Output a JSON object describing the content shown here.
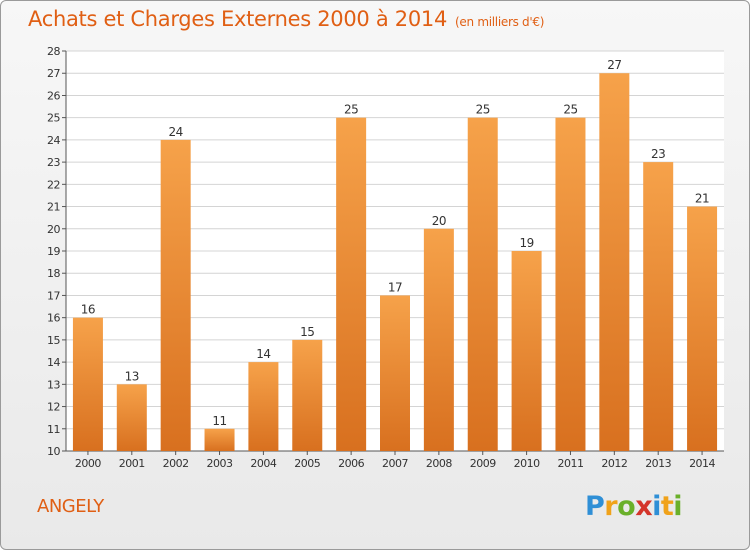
{
  "title": "Achats et Charges Externes 2000 à 2014",
  "unit_label": "(en milliers d'€)",
  "commune": "ANGELY",
  "logo": {
    "text": "Proxiti",
    "letters": [
      "P",
      "r",
      "o",
      "x",
      "i",
      "t",
      "i"
    ],
    "colors": [
      "#2f8fd6",
      "#f0a21a",
      "#6ab02a",
      "#d4342a",
      "#2f8fd6",
      "#f0a21a",
      "#6ab02a"
    ]
  },
  "colors": {
    "title": "#e05f14",
    "bar_top": "#f6a24a",
    "bar_bottom": "#d8701f"
  },
  "chart_data": {
    "type": "bar",
    "categories": [
      "2000",
      "2001",
      "2002",
      "2003",
      "2004",
      "2005",
      "2006",
      "2007",
      "2008",
      "2009",
      "2010",
      "2011",
      "2012",
      "2013",
      "2014"
    ],
    "values": [
      16,
      13,
      24,
      11,
      14,
      15,
      25,
      17,
      20,
      25,
      19,
      25,
      27,
      23,
      21
    ],
    "ylim": [
      10,
      28
    ],
    "yticks": [
      10,
      11,
      12,
      13,
      14,
      15,
      16,
      17,
      18,
      19,
      20,
      21,
      22,
      23,
      24,
      25,
      26,
      27,
      28
    ],
    "grid": true
  }
}
